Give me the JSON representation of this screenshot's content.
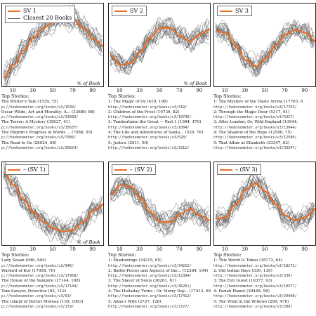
{
  "colors": {
    "main_line": "#e8702a",
    "grey_lines": "#555555"
  },
  "panels": [
    {
      "legend_main": "SV 1",
      "legend_grey": "Closest 20 Books",
      "xlabel": "% of Book",
      "tick_labels": [
        "10",
        "30",
        "50",
        "70",
        "90"
      ],
      "stories_title": "Top Stories:",
      "stories": [
        {
          "title": "The Winter's Tale (1539, 75)",
          "url": "p://hedonometer.org/books/v3/1539/"
        },
        {
          "title": "Oscar Wilde, Art and Morality: A... (33689, 88)",
          "url": "p://hedonometer.org/books/v3/33689/"
        },
        {
          "title": "The Terror: A Mystery (35637, 41)",
          "url": "p://hedonometer.org/books/v3/35637/"
        },
        {
          "title": "The Pilgrim's Progress in Words ... (7086, 55)",
          "url": "p://hedonometer.org/books/v3/7086/"
        },
        {
          "title": "The Road to Oz (26624, 68)",
          "url": "p://hedonometer.org/books/v3/26624/"
        }
      ]
    },
    {
      "legend_main": "SV 2",
      "legend_grey": "",
      "xlabel": "% of Book",
      "tick_labels": [
        "10",
        "30",
        "50",
        "70",
        "90"
      ],
      "stories_title": "Top Stories:",
      "stories": [
        {
          "title": "1: The Magic of Oz (419, 196)",
          "url": "http://hedonometer.org/books/v3/419/"
        },
        {
          "title": "2: Children of the Frost (10736, 82)",
          "url": "http://hedonometer.org/books/v3/10736/"
        },
        {
          "title": "3: Tamburlaine the Great — Part 1 (1094, 476)",
          "url": "http://hedonometer.org/books/v3/1094/"
        },
        {
          "title": "4: The Life and Adventures of Santa... (520, 76)",
          "url": "http://hedonometer.org/books/v3/520/"
        },
        {
          "title": "5: Justice (2911, 50)",
          "url": "http://hedonometer.org/books/v3/2911/"
        }
      ]
    },
    {
      "legend_main": "SV 3",
      "legend_grey": "",
      "xlabel": "",
      "tick_labels": [
        "10",
        "30",
        "50",
        "70",
        "90"
      ],
      "stories_title": "Top Stories:",
      "stories": [
        {
          "title": "1: The Mystery of the Hasty Arrow (17763, 6",
          "url": "http://hedonometer.org/books/v3/17763/"
        },
        {
          "title": "2: Through the Magic Door (5317, 61)",
          "url": "http://hedonometer.org/books/v3/5317/"
        },
        {
          "title": "3: After London; Or, Wild England (13944,",
          "url": "http://hedonometer.org/books/v3/13944/"
        },
        {
          "title": "4: The Shadow of the Rope (12590, 75)",
          "url": "http://hedonometer.org/books/v3/12590/"
        },
        {
          "title": "5: That Affair at Elizabeth (33347, 62)",
          "url": "http://hedonometer.org/books/v3/33347/"
        }
      ]
    },
    {
      "legend_main": "– (SV 1)",
      "legend_grey": "",
      "xlabel": "% of Book",
      "tick_labels": [
        "10",
        "30",
        "50",
        "70",
        "90"
      ],
      "stories_title": "Top Stories:",
      "stories": [
        {
          "title": "Lady Susan (946, 994)",
          "url": "p://hedonometer.org/books/v3/946/"
        },
        {
          "title": "Warlord of Kor (17958, 70)",
          "url": "p://hedonometer.org/books/v3/17958/"
        },
        {
          "title": "The House of the Vampire (17144, 188)",
          "url": "p://hedonometer.org/books/v3/17144/"
        },
        {
          "title": "Tom Sawyer, Detective (93, 112)",
          "url": "p://hedonometer.org/books/v3/93/"
        },
        {
          "title": "The Island of Doctor Moreau (159, 1063)",
          "url": "p://hedonometer.org/books/v3/159/"
        }
      ]
    },
    {
      "legend_main": "– (SV 2)",
      "legend_grey": "",
      "xlabel": "",
      "tick_labels": [
        "10",
        "30",
        "50",
        "70",
        "90"
      ],
      "stories_title": "Top Stories:",
      "stories": [
        {
          "title": "1: Shadowings (34215, 65)",
          "url": "http://hedonometer.org/books/v3/34215/"
        },
        {
          "title": "2: Battle-Pieces and Aspects of the... (12384, 194)",
          "url": "http://hedonometer.org/books/v3/12384/"
        },
        {
          "title": "3: The Slayer of Souls (36261, 61)",
          "url": "http://hedonometer.org/books/v3/36261/"
        },
        {
          "title": "4: The Holladay Twins ; Or, Merry Day... (17412, 69)",
          "url": "http://hedonometer.org/books/v3/17412/"
        },
        {
          "title": "5: Allan's Wife (2727, 128)",
          "url": "http://hedonometer.org/books/v3/2727/"
        }
      ]
    },
    {
      "legend_main": "– (SV 3)",
      "legend_grey": "",
      "xlabel": "",
      "tick_labels": [
        "10",
        "30",
        "50",
        "70",
        "90"
      ],
      "stories_title": "Top Stories:",
      "stories": [
        {
          "title": "1: This World Is Taboo (18172, 64)",
          "url": "http://hedonometer.org/books/v3/18172/"
        },
        {
          "title": "2: Old Indian Days (339, 139)",
          "url": "http://hedonometer.org/books/v3/339/"
        },
        {
          "title": "3: The Evil Guest (10377, 93)",
          "url": "http://hedonometer.org/books/v3/10377/"
        },
        {
          "title": "4: Pariah Planet (29448, 96)",
          "url": "http://hedonometer.org/books/v3/29448/"
        },
        {
          "title": "5: The Wind in the Willows (289, 478)",
          "url": "http://hedonometer.org/books/v3/289/"
        }
      ]
    }
  ],
  "chart_data": [
    {
      "type": "line",
      "series": [
        {
          "name": "SV 1",
          "x": [
            0,
            10,
            20,
            30,
            40,
            50,
            60,
            70,
            80,
            90,
            100
          ],
          "values": [
            -1.0,
            -0.6,
            -0.15,
            0.25,
            0.55,
            0.75,
            0.85,
            0.8,
            0.55,
            0.2,
            0.0
          ]
        }
      ],
      "xlim": [
        0,
        100
      ],
      "xlabel": "% of Book"
    },
    {
      "type": "line",
      "series": [
        {
          "name": "SV 2",
          "x": [
            0,
            10,
            20,
            30,
            40,
            50,
            60,
            70,
            80,
            90,
            100
          ],
          "values": [
            -0.3,
            -0.6,
            -0.55,
            -0.2,
            0.25,
            0.55,
            0.55,
            0.3,
            0.15,
            0.35,
            0.5
          ]
        }
      ],
      "xlim": [
        0,
        100
      ],
      "xlabel": "% of Book"
    },
    {
      "type": "line",
      "series": [
        {
          "name": "SV 3",
          "x": [
            0,
            10,
            20,
            30,
            40,
            50,
            60,
            70,
            80,
            90,
            100
          ],
          "values": [
            0.45,
            0.4,
            0.0,
            -0.45,
            -0.65,
            -0.4,
            0.0,
            0.35,
            0.5,
            0.4,
            0.15
          ]
        }
      ],
      "xlim": [
        0,
        100
      ]
    },
    {
      "type": "line",
      "series": [
        {
          "name": "– (SV 1)",
          "x": [
            0,
            10,
            20,
            30,
            40,
            50,
            60,
            70,
            80,
            90,
            100
          ],
          "values": [
            1.0,
            0.6,
            0.15,
            -0.25,
            -0.55,
            -0.75,
            -0.85,
            -0.8,
            -0.55,
            -0.2,
            0.0
          ]
        }
      ],
      "xlim": [
        0,
        100
      ],
      "xlabel": "% of Book"
    },
    {
      "type": "line",
      "series": [
        {
          "name": "– (SV 2)",
          "x": [
            0,
            10,
            20,
            30,
            40,
            50,
            60,
            70,
            80,
            90,
            100
          ],
          "values": [
            0.3,
            0.6,
            0.55,
            0.2,
            -0.25,
            -0.55,
            -0.55,
            -0.3,
            -0.15,
            -0.35,
            -0.5
          ]
        }
      ],
      "xlim": [
        0,
        100
      ]
    },
    {
      "type": "line",
      "series": [
        {
          "name": "– (SV 3)",
          "x": [
            0,
            10,
            20,
            30,
            40,
            50,
            60,
            70,
            80,
            90,
            100
          ],
          "values": [
            -0.45,
            -0.4,
            0.0,
            0.45,
            0.65,
            0.4,
            0.0,
            -0.35,
            -0.5,
            -0.4,
            -0.15
          ]
        }
      ],
      "xlim": [
        0,
        100
      ]
    }
  ]
}
